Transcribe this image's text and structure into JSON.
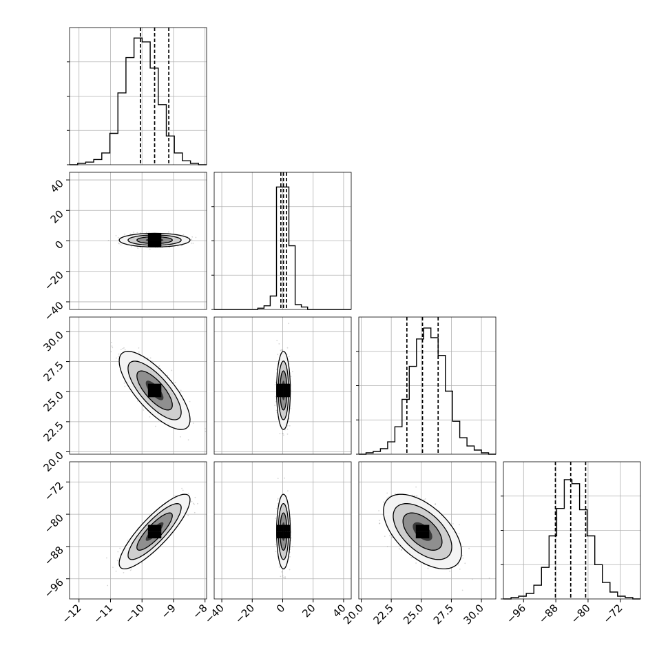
{
  "chart_data": {
    "type": "scatter",
    "subtype": "corner-plot",
    "grid": true,
    "colors": {
      "contour": "#000000",
      "scatter": "#888888",
      "grid": "#b0b0b0",
      "background": "#ffffff"
    },
    "params": [
      {
        "index": 0,
        "range": [
          -12.3,
          -7.95
        ],
        "ticks": [
          -12,
          -11,
          -10,
          -9,
          -8
        ],
        "tick_labels": [
          "−12",
          "−11",
          "−10",
          "−9",
          "−8"
        ],
        "center": -9.6,
        "sigma": 0.45,
        "quantiles": [
          -10.05,
          -9.6,
          -9.15
        ],
        "hist": [
          0,
          1,
          2,
          4,
          9,
          24,
          55,
          82,
          97,
          94,
          74,
          46,
          22,
          9,
          3,
          1,
          0
        ],
        "hist_max": 105
      },
      {
        "index": 1,
        "range": [
          -45,
          45
        ],
        "ticks": [
          -40,
          -20,
          0,
          20,
          40
        ],
        "tick_labels": [
          "−40",
          "−20",
          "0",
          "20",
          "40"
        ],
        "center": 0.5,
        "sigma": 1.8,
        "quantiles": [
          -1.2,
          0.5,
          2.5
        ],
        "hist": [
          0,
          0,
          0,
          0,
          0,
          0,
          0,
          1,
          3,
          11,
          100,
          100,
          52,
          4,
          2,
          0,
          0,
          0,
          0,
          0,
          0,
          0
        ],
        "hist_max": 112
      },
      {
        "index": 2,
        "range": [
          19.8,
          31.2
        ],
        "ticks": [
          20.0,
          22.5,
          25.0,
          27.5,
          30.0
        ],
        "tick_labels": [
          "20.0",
          "22.5",
          "25.0",
          "27.5",
          "30.0"
        ],
        "center": 25.1,
        "sigma": 1.3,
        "quantiles": [
          23.8,
          25.1,
          26.4
        ],
        "hist": [
          0,
          1,
          2,
          4,
          9,
          20,
          40,
          64,
          84,
          92,
          85,
          72,
          46,
          24,
          12,
          6,
          3,
          1,
          0
        ],
        "hist_max": 100
      },
      {
        "index": 3,
        "range": [
          -101,
          -67
        ],
        "ticks": [
          -96,
          -88,
          -80,
          -72
        ],
        "tick_labels": [
          "−96",
          "−88",
          "−80",
          "−72"
        ],
        "center": -84.3,
        "sigma": 3.7,
        "quantiles": [
          -88.1,
          -84.3,
          -80.6
        ],
        "hist": [
          0,
          1,
          2,
          4,
          10,
          23,
          46,
          66,
          87,
          84,
          65,
          46,
          25,
          12,
          5,
          2,
          1,
          0
        ],
        "hist_max": 100
      }
    ],
    "correlations": [
      {
        "x": 0,
        "y": 1,
        "rho": 0.0
      },
      {
        "x": 0,
        "y": 2,
        "rho": -0.75
      },
      {
        "x": 1,
        "y": 2,
        "rho": 0.0
      },
      {
        "x": 0,
        "y": 3,
        "rho": 0.85
      },
      {
        "x": 1,
        "y": 3,
        "rho": 0.0
      },
      {
        "x": 2,
        "y": 3,
        "rho": -0.55
      }
    ],
    "contour_levels_sigma": [
      0.5,
      1.0,
      1.5,
      2.0
    ],
    "scatter_points_per_panel": 900,
    "density_cells": 12
  }
}
